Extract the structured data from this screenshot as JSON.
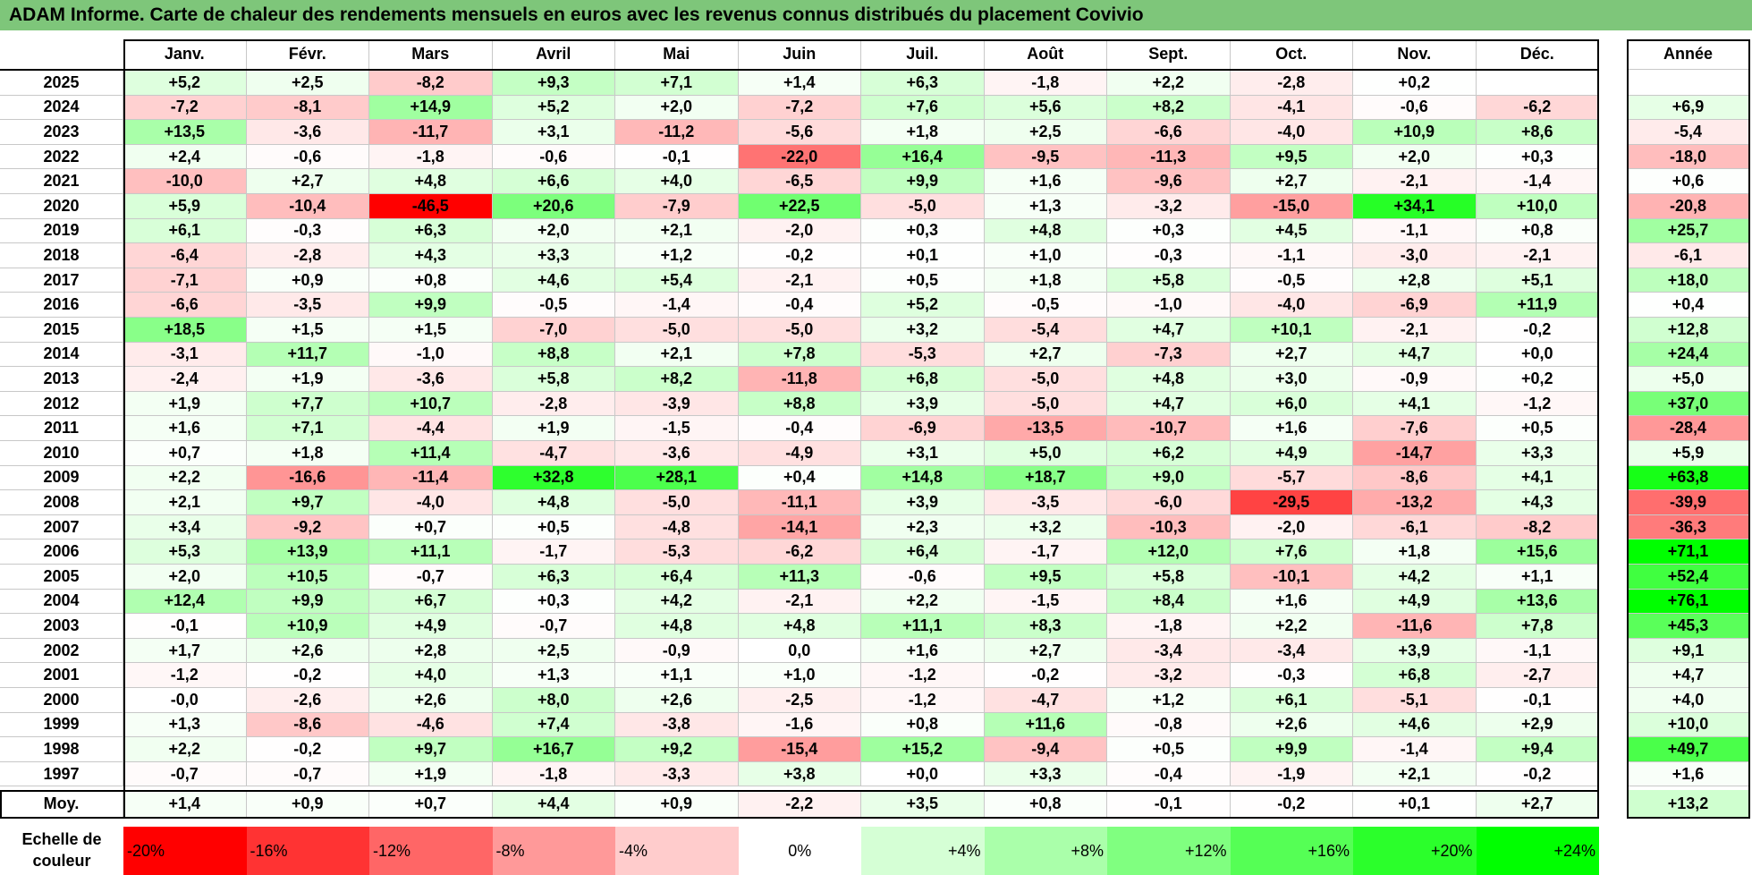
{
  "title": "ADAM Informe. Carte de chaleur des rendements mensuels en euros avec les revenus connus distribués du placement Covivio",
  "chart_data": {
    "type": "heatmap",
    "title": "ADAM Informe. Carte de chaleur des rendements mensuels en euros avec les revenus connus distribués du placement Covivio",
    "months": [
      "Janv.",
      "Févr.",
      "Mars",
      "Avril",
      "Mai",
      "Juin",
      "Juil.",
      "Août",
      "Sept.",
      "Oct.",
      "Nov.",
      "Déc."
    ],
    "annual_header": "Année",
    "rows": [
      {
        "year": "2025",
        "values": [
          "+5,2",
          "+2,5",
          "-8,2",
          "+9,3",
          "+7,1",
          "+1,4",
          "+6,3",
          "-1,8",
          "+2,2",
          "-2,8",
          "+0,2",
          ""
        ],
        "annual": ""
      },
      {
        "year": "2024",
        "values": [
          "-7,2",
          "-8,1",
          "+14,9",
          "+5,2",
          "+2,0",
          "-7,2",
          "+7,6",
          "+5,6",
          "+8,2",
          "-4,1",
          "-0,6",
          "-6,2"
        ],
        "annual": "+6,9"
      },
      {
        "year": "2023",
        "values": [
          "+13,5",
          "-3,6",
          "-11,7",
          "+3,1",
          "-11,2",
          "-5,6",
          "+1,8",
          "+2,5",
          "-6,6",
          "-4,0",
          "+10,9",
          "+8,6"
        ],
        "annual": "-5,4"
      },
      {
        "year": "2022",
        "values": [
          "+2,4",
          "-0,6",
          "-1,8",
          "-0,6",
          "-0,1",
          "-22,0",
          "+16,4",
          "-9,5",
          "-11,3",
          "+9,5",
          "+2,0",
          "+0,3"
        ],
        "annual": "-18,0"
      },
      {
        "year": "2021",
        "values": [
          "-10,0",
          "+2,7",
          "+4,8",
          "+6,6",
          "+4,0",
          "-6,5",
          "+9,9",
          "+1,6",
          "-9,6",
          "+2,7",
          "-2,1",
          "-1,4"
        ],
        "annual": "+0,6"
      },
      {
        "year": "2020",
        "values": [
          "+5,9",
          "-10,4",
          "-46,5",
          "+20,6",
          "-7,9",
          "+22,5",
          "-5,0",
          "+1,3",
          "-3,2",
          "-15,0",
          "+34,1",
          "+10,0"
        ],
        "annual": "-20,8"
      },
      {
        "year": "2019",
        "values": [
          "+6,1",
          "-0,3",
          "+6,3",
          "+2,0",
          "+2,1",
          "-2,0",
          "+0,3",
          "+4,8",
          "+0,3",
          "+4,5",
          "-1,1",
          "+0,8"
        ],
        "annual": "+25,7"
      },
      {
        "year": "2018",
        "values": [
          "-6,4",
          "-2,8",
          "+4,3",
          "+3,3",
          "+1,2",
          "-0,2",
          "+0,1",
          "+1,0",
          "-0,3",
          "-1,1",
          "-3,0",
          "-2,1"
        ],
        "annual": "-6,1"
      },
      {
        "year": "2017",
        "values": [
          "-7,1",
          "+0,9",
          "+0,8",
          "+4,6",
          "+5,4",
          "-2,1",
          "+0,5",
          "+1,8",
          "+5,8",
          "-0,5",
          "+2,8",
          "+5,1"
        ],
        "annual": "+18,0"
      },
      {
        "year": "2016",
        "values": [
          "-6,6",
          "-3,5",
          "+9,9",
          "-0,5",
          "-1,4",
          "-0,4",
          "+5,2",
          "-0,5",
          "-1,0",
          "-4,0",
          "-6,9",
          "+11,9"
        ],
        "annual": "+0,4"
      },
      {
        "year": "2015",
        "values": [
          "+18,5",
          "+1,5",
          "+1,5",
          "-7,0",
          "-5,0",
          "-5,0",
          "+3,2",
          "-5,4",
          "+4,7",
          "+10,1",
          "-2,1",
          "-0,2"
        ],
        "annual": "+12,8"
      },
      {
        "year": "2014",
        "values": [
          "-3,1",
          "+11,7",
          "-1,0",
          "+8,8",
          "+2,1",
          "+7,8",
          "-5,3",
          "+2,7",
          "-7,3",
          "+2,7",
          "+4,7",
          "+0,0"
        ],
        "annual": "+24,4"
      },
      {
        "year": "2013",
        "values": [
          "-2,4",
          "+1,9",
          "-3,6",
          "+5,8",
          "+8,2",
          "-11,8",
          "+6,8",
          "-5,0",
          "+4,8",
          "+3,0",
          "-0,9",
          "+0,2"
        ],
        "annual": "+5,0"
      },
      {
        "year": "2012",
        "values": [
          "+1,9",
          "+7,7",
          "+10,7",
          "-2,8",
          "-3,9",
          "+8,8",
          "+3,9",
          "-5,0",
          "+4,7",
          "+6,0",
          "+4,1",
          "-1,2"
        ],
        "annual": "+37,0"
      },
      {
        "year": "2011",
        "values": [
          "+1,6",
          "+7,1",
          "-4,4",
          "+1,9",
          "-1,5",
          "-0,4",
          "-6,9",
          "-13,5",
          "-10,7",
          "+1,6",
          "-7,6",
          "+0,5"
        ],
        "annual": "-28,4"
      },
      {
        "year": "2010",
        "values": [
          "+0,7",
          "+1,8",
          "+11,4",
          "-4,7",
          "-3,6",
          "-4,9",
          "+3,1",
          "+5,0",
          "+6,2",
          "+4,9",
          "-14,7",
          "+3,3"
        ],
        "annual": "+5,9"
      },
      {
        "year": "2009",
        "values": [
          "+2,2",
          "-16,6",
          "-11,4",
          "+32,8",
          "+28,1",
          "+0,4",
          "+14,8",
          "+18,7",
          "+9,0",
          "-5,7",
          "-8,6",
          "+4,1"
        ],
        "annual": "+63,8"
      },
      {
        "year": "2008",
        "values": [
          "+2,1",
          "+9,7",
          "-4,0",
          "+4,8",
          "-5,0",
          "-11,1",
          "+3,9",
          "-3,5",
          "-6,0",
          "-29,5",
          "-13,2",
          "+4,3"
        ],
        "annual": "-39,9"
      },
      {
        "year": "2007",
        "values": [
          "+3,4",
          "-9,2",
          "+0,7",
          "+0,5",
          "-4,8",
          "-14,1",
          "+2,3",
          "+3,2",
          "-10,3",
          "-2,0",
          "-6,1",
          "-8,2"
        ],
        "annual": "-36,3"
      },
      {
        "year": "2006",
        "values": [
          "+5,3",
          "+13,9",
          "+11,1",
          "-1,7",
          "-5,3",
          "-6,2",
          "+6,4",
          "-1,7",
          "+12,0",
          "+7,6",
          "+1,8",
          "+15,6"
        ],
        "annual": "+71,1"
      },
      {
        "year": "2005",
        "values": [
          "+2,0",
          "+10,5",
          "-0,7",
          "+6,3",
          "+6,4",
          "+11,3",
          "-0,6",
          "+9,5",
          "+5,8",
          "-10,1",
          "+4,2",
          "+1,1"
        ],
        "annual": "+52,4"
      },
      {
        "year": "2004",
        "values": [
          "+12,4",
          "+9,9",
          "+6,7",
          "+0,3",
          "+4,2",
          "-2,1",
          "+2,2",
          "-1,5",
          "+8,4",
          "+1,6",
          "+4,9",
          "+13,6"
        ],
        "annual": "+76,1"
      },
      {
        "year": "2003",
        "values": [
          "-0,1",
          "+10,9",
          "+4,9",
          "-0,7",
          "+4,8",
          "+4,8",
          "+11,1",
          "+8,3",
          "-1,8",
          "+2,2",
          "-11,6",
          "+7,8"
        ],
        "annual": "+45,3"
      },
      {
        "year": "2002",
        "values": [
          "+1,7",
          "+2,6",
          "+2,8",
          "+2,5",
          "-0,9",
          "0,0",
          "+1,6",
          "+2,7",
          "-3,4",
          "-3,4",
          "+3,9",
          "-1,1"
        ],
        "annual": "+9,1"
      },
      {
        "year": "2001",
        "values": [
          "-1,2",
          "-0,2",
          "+4,0",
          "+1,3",
          "+1,1",
          "+1,0",
          "-1,2",
          "-0,2",
          "-3,2",
          "-0,3",
          "+6,8",
          "-2,7"
        ],
        "annual": "+4,7"
      },
      {
        "year": "2000",
        "values": [
          "-0,0",
          "-2,6",
          "+2,6",
          "+8,0",
          "+2,6",
          "-2,5",
          "-1,2",
          "-4,7",
          "+1,2",
          "+6,1",
          "-5,1",
          "-0,1"
        ],
        "annual": "+4,0"
      },
      {
        "year": "1999",
        "values": [
          "+1,3",
          "-8,6",
          "-4,6",
          "+7,4",
          "-3,8",
          "-1,6",
          "+0,8",
          "+11,6",
          "-0,8",
          "+2,6",
          "+4,6",
          "+2,9"
        ],
        "annual": "+10,0"
      },
      {
        "year": "1998",
        "values": [
          "+2,2",
          "-0,2",
          "+9,7",
          "+16,7",
          "+9,2",
          "-15,4",
          "+15,2",
          "-9,4",
          "+0,5",
          "+9,9",
          "-1,4",
          "+9,4"
        ],
        "annual": "+49,7"
      },
      {
        "year": "1997",
        "values": [
          "-0,7",
          "-0,7",
          "+1,9",
          "-1,8",
          "-3,3",
          "+3,8",
          "+0,0",
          "+3,3",
          "-0,4",
          "-1,9",
          "+2,1",
          "-0,2"
        ],
        "annual": "+1,6"
      }
    ],
    "average": {
      "label": "Moy.",
      "values": [
        "+1,4",
        "+0,9",
        "+0,7",
        "+4,4",
        "+0,9",
        "-2,2",
        "+3,5",
        "+0,8",
        "-0,1",
        "-0,2",
        "+0,1",
        "+2,7"
      ],
      "annual": "+13,2"
    },
    "color_scale": {
      "label": "Echelle de couleur",
      "steps": [
        {
          "label": "-20%",
          "value": -20,
          "color": "#ff0000"
        },
        {
          "label": "-16%",
          "value": -16,
          "color": "#ff3333"
        },
        {
          "label": "-12%",
          "value": -12,
          "color": "#ff6666"
        },
        {
          "label": "-8%",
          "value": -8,
          "color": "#ff9999"
        },
        {
          "label": "-4%",
          "value": -4,
          "color": "#ffcccc"
        },
        {
          "label": "0%",
          "value": 0,
          "color": "#ffffff"
        },
        {
          "label": "+4%",
          "value": 4,
          "color": "#d5ffd5"
        },
        {
          "label": "+8%",
          "value": 8,
          "color": "#aaffaa"
        },
        {
          "label": "+12%",
          "value": 12,
          "color": "#80ff80"
        },
        {
          "label": "+16%",
          "value": 16,
          "color": "#55ff55"
        },
        {
          "label": "+20%",
          "value": 20,
          "color": "#2bff2b"
        },
        {
          "label": "+24%",
          "value": 24,
          "color": "#00ff00"
        }
      ]
    }
  },
  "colors": {
    "title_bar": "#7ec67a",
    "negative_max": "#ff0000",
    "positive_max": "#00ff00",
    "neutral": "#ffffff"
  }
}
